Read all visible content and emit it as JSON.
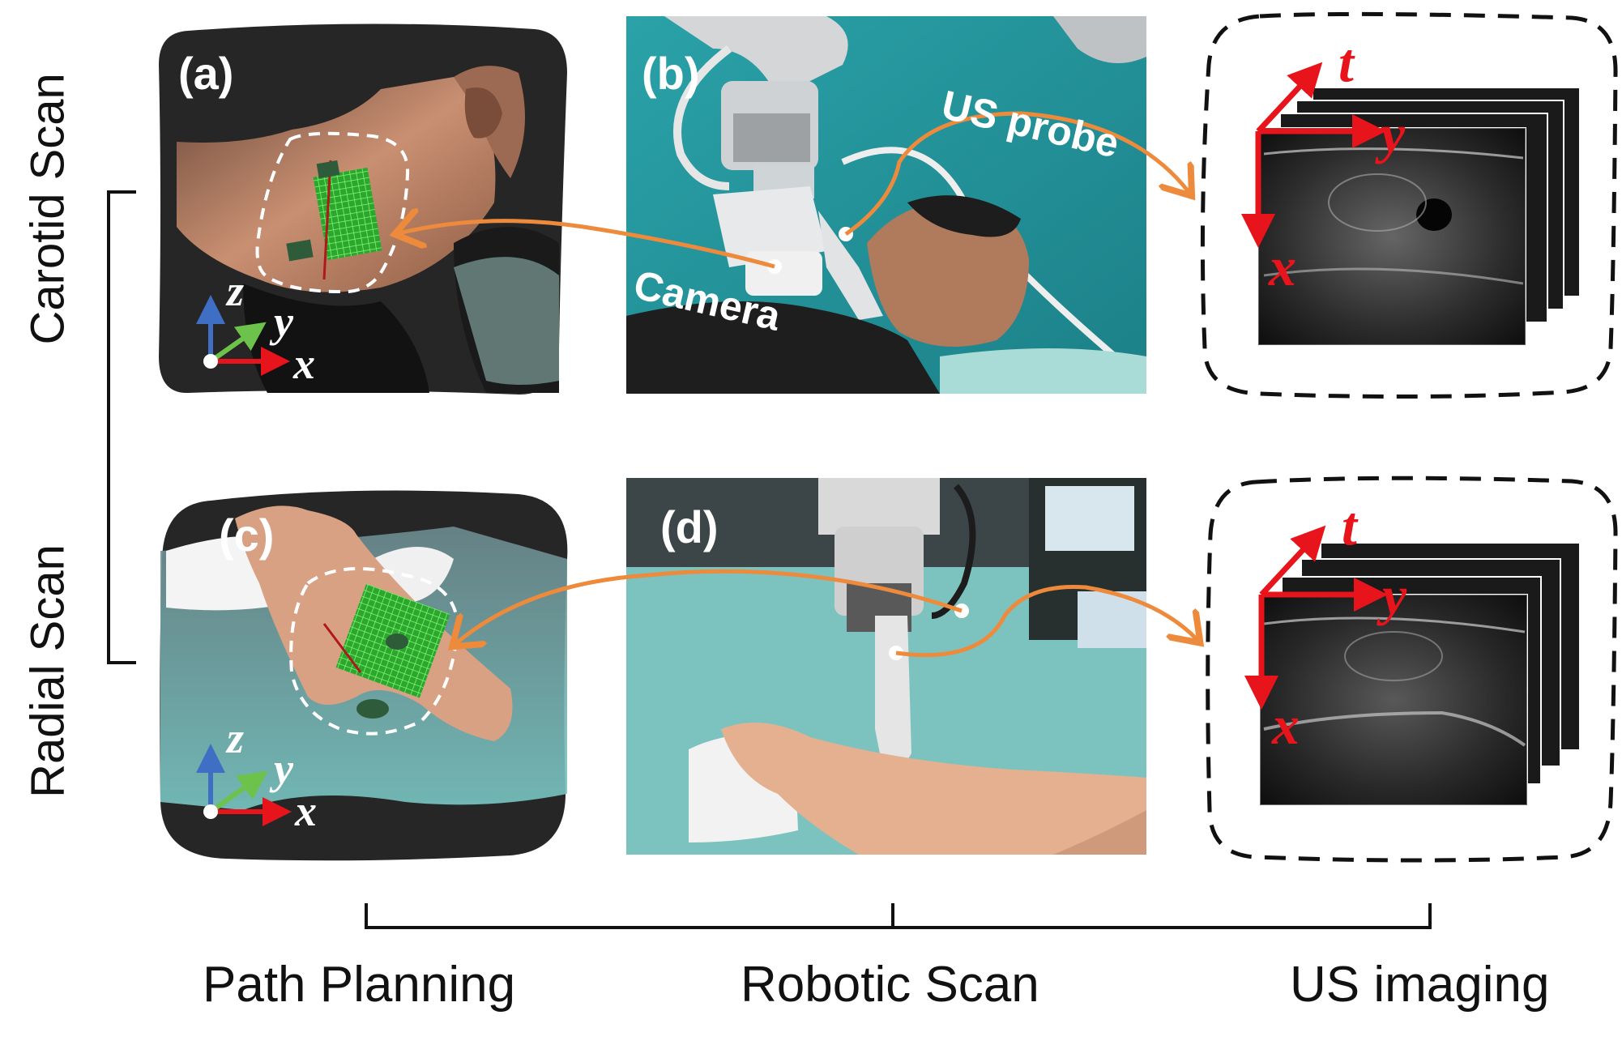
{
  "rows": {
    "top_label": "Carotid Scan",
    "bottom_label": "Radial Scan"
  },
  "columns": {
    "left_label": "Path Planning",
    "middle_label": "Robotic Scan",
    "right_label": "US imaging"
  },
  "panels": {
    "a": {
      "tag": "(a)",
      "axes": {
        "z": "z",
        "y": "y",
        "x": "x"
      }
    },
    "b": {
      "tag": "(b)",
      "probe_label": "US probe",
      "camera_label": "Camera"
    },
    "c": {
      "tag": "(c)",
      "axes": {
        "z": "z",
        "y": "y",
        "x": "x"
      }
    },
    "d": {
      "tag": "(d)"
    },
    "us_top": {
      "axes": {
        "t": "t",
        "y": "y",
        "x": "x"
      }
    },
    "us_bottom": {
      "axes": {
        "t": "t",
        "y": "y",
        "x": "x"
      }
    }
  },
  "colors": {
    "arrow": "#ee8a3c",
    "axis_red": "#e8141b",
    "axis_green": "#6cc24a",
    "axis_blue": "#3f6fc4",
    "point_cloud_bg": "#222222",
    "scan_grid": "#39e63a"
  }
}
